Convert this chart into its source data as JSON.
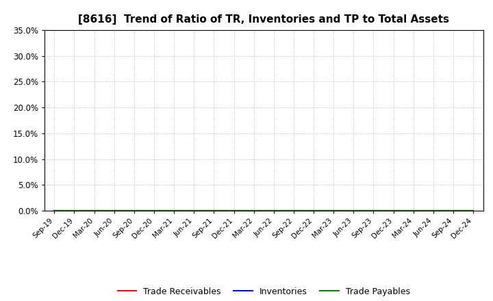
{
  "title": "[8616]  Trend of Ratio of TR, Inventories and TP to Total Assets",
  "title_fontsize": 11,
  "x_labels": [
    "Sep-19",
    "Dec-19",
    "Mar-20",
    "Jun-20",
    "Sep-20",
    "Dec-20",
    "Mar-21",
    "Jun-21",
    "Sep-21",
    "Dec-21",
    "Mar-22",
    "Jun-22",
    "Sep-22",
    "Dec-22",
    "Mar-23",
    "Jun-23",
    "Sep-23",
    "Dec-23",
    "Mar-24",
    "Jun-24",
    "Sep-24",
    "Dec-24"
  ],
  "ylim": [
    0.0,
    0.35
  ],
  "yticks": [
    0.0,
    0.05,
    0.1,
    0.15,
    0.2,
    0.25,
    0.3,
    0.35
  ],
  "ytick_labels": [
    "0.0%",
    "5.0%",
    "10.0%",
    "15.0%",
    "20.0%",
    "25.0%",
    "30.0%",
    "35.0%"
  ],
  "trade_receivables": [
    0,
    0,
    0,
    0,
    0,
    0,
    0,
    0,
    0,
    0,
    0,
    0,
    0,
    0,
    0,
    0,
    0,
    0,
    0,
    0,
    0,
    0
  ],
  "inventories": [
    0,
    0,
    0,
    0,
    0,
    0,
    0,
    0,
    0,
    0,
    0,
    0,
    0,
    0,
    0,
    0,
    0,
    0,
    0,
    0,
    0,
    0
  ],
  "trade_payables": [
    0,
    0,
    0,
    0,
    0,
    0,
    0,
    0,
    0,
    0,
    0,
    0,
    0,
    0,
    0,
    0,
    0,
    0,
    0,
    0,
    0,
    0
  ],
  "line_color_tr": "#ff0000",
  "line_color_inv": "#0000ff",
  "line_color_tp": "#008000",
  "legend_labels": [
    "Trade Receivables",
    "Inventories",
    "Trade Payables"
  ],
  "background_color": "#ffffff",
  "grid_color": "#b0b0b0",
  "grid_style": ":",
  "grid_linewidth": 0.6,
  "axis_linecolor": "#000000",
  "tick_labelsize": 7.5,
  "ytick_labelsize": 8.5
}
